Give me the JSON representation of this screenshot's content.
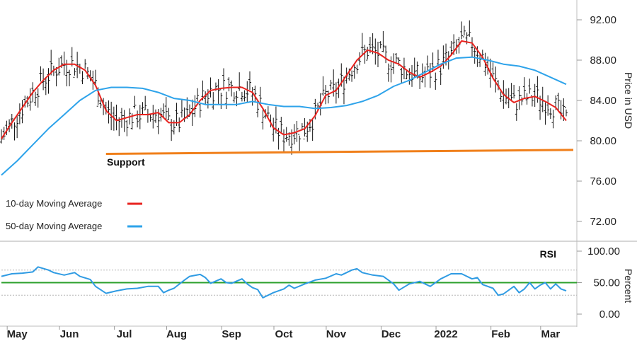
{
  "chart_data": [
    {
      "type": "candlestick",
      "panel": "price",
      "ylabel": "Price in USD",
      "ylim": [
        70.0,
        94.0
      ],
      "y_ticks": [
        "92.00",
        "88.00",
        "84.00",
        "80.00",
        "76.00",
        "72.00"
      ],
      "y_tick_values": [
        92,
        88,
        84,
        80,
        76,
        72
      ],
      "months": [
        "May",
        "Jun",
        "Jul",
        "Aug",
        "Sep",
        "Oct",
        "Nov",
        "Dec",
        "2022",
        "Feb",
        "Mar"
      ],
      "x_range": [
        0,
        216
      ],
      "month_starts": [
        6,
        26,
        47,
        67,
        88,
        108,
        128,
        149,
        170,
        191,
        210
      ],
      "support": {
        "label": "Support",
        "x": [
          40,
          216
        ],
        "y": [
          78.7,
          79.1
        ],
        "color": "#f07f1a"
      },
      "legend": [
        {
          "label": "10-day Moving Average",
          "color": "#e8231f"
        },
        {
          "label": "50-day Moving Average",
          "color": "#2ea3ea"
        }
      ],
      "series": [
        {
          "name": "10-day Moving Average",
          "color": "#e8231f",
          "points": [
            [
              0,
              80.2
            ],
            [
              4,
              81.8
            ],
            [
              8,
              83.3
            ],
            [
              12,
              84.8
            ],
            [
              16,
              86.0
            ],
            [
              20,
              87.0
            ],
            [
              24,
              87.6
            ],
            [
              28,
              87.6
            ],
            [
              32,
              87.0
            ],
            [
              36,
              85.5
            ],
            [
              40,
              83.0
            ],
            [
              44,
              82.0
            ],
            [
              48,
              82.3
            ],
            [
              52,
              82.6
            ],
            [
              56,
              82.6
            ],
            [
              60,
              82.8
            ],
            [
              64,
              81.8
            ],
            [
              68,
              81.8
            ],
            [
              72,
              82.6
            ],
            [
              76,
              84.0
            ],
            [
              80,
              85.0
            ],
            [
              84,
              85.2
            ],
            [
              88,
              85.3
            ],
            [
              92,
              85.3
            ],
            [
              96,
              84.8
            ],
            [
              100,
              83.2
            ],
            [
              104,
              81.3
            ],
            [
              108,
              80.6
            ],
            [
              112,
              80.8
            ],
            [
              116,
              81.2
            ],
            [
              120,
              82.5
            ],
            [
              124,
              84.5
            ],
            [
              128,
              85.0
            ],
            [
              132,
              86.5
            ],
            [
              136,
              88.0
            ],
            [
              140,
              89.0
            ],
            [
              144,
              88.7
            ],
            [
              148,
              88.0
            ],
            [
              152,
              87.6
            ],
            [
              156,
              86.8
            ],
            [
              160,
              86.3
            ],
            [
              164,
              86.8
            ],
            [
              168,
              87.4
            ],
            [
              172,
              88.5
            ],
            [
              176,
              89.9
            ],
            [
              180,
              89.7
            ],
            [
              184,
              88.3
            ],
            [
              188,
              86.2
            ],
            [
              192,
              84.6
            ],
            [
              196,
              83.8
            ],
            [
              200,
              84.2
            ],
            [
              204,
              84.4
            ],
            [
              208,
              83.9
            ],
            [
              212,
              83.3
            ],
            [
              216,
              82.0
            ]
          ]
        },
        {
          "name": "50-day Moving Average",
          "color": "#2ea3ea",
          "points": [
            [
              0,
              76.6
            ],
            [
              6,
              78.0
            ],
            [
              12,
              79.6
            ],
            [
              18,
              81.2
            ],
            [
              24,
              82.6
            ],
            [
              30,
              84.0
            ],
            [
              36,
              85.0
            ],
            [
              42,
              85.3
            ],
            [
              48,
              85.3
            ],
            [
              54,
              85.2
            ],
            [
              60,
              84.8
            ],
            [
              66,
              84.2
            ],
            [
              72,
              84.0
            ],
            [
              78,
              83.6
            ],
            [
              84,
              83.6
            ],
            [
              90,
              83.6
            ],
            [
              96,
              83.9
            ],
            [
              102,
              83.6
            ],
            [
              108,
              83.4
            ],
            [
              114,
              83.4
            ],
            [
              120,
              83.2
            ],
            [
              126,
              83.3
            ],
            [
              132,
              83.5
            ],
            [
              138,
              83.9
            ],
            [
              144,
              84.5
            ],
            [
              150,
              85.4
            ],
            [
              156,
              86.0
            ],
            [
              162,
              86.8
            ],
            [
              168,
              87.6
            ],
            [
              174,
              88.2
            ],
            [
              180,
              88.3
            ],
            [
              186,
              88.0
            ],
            [
              192,
              87.6
            ],
            [
              198,
              87.4
            ],
            [
              204,
              87.0
            ],
            [
              210,
              86.3
            ],
            [
              216,
              85.6
            ]
          ]
        }
      ]
    },
    {
      "type": "line",
      "panel": "rsi",
      "title": "RSI",
      "ylabel": "Percent",
      "ylim": [
        0,
        100
      ],
      "y_ticks": [
        "100.00",
        "50.00",
        "0.00"
      ],
      "y_tick_values": [
        100,
        50,
        0
      ],
      "overbought": 70,
      "oversold": 30,
      "midline": 50,
      "midline_color": "#2ca02c",
      "series": [
        {
          "name": "RSI",
          "color": "#2f9be3",
          "points": [
            [
              0,
              60
            ],
            [
              4,
              64
            ],
            [
              8,
              65
            ],
            [
              12,
              67
            ],
            [
              14,
              75
            ],
            [
              18,
              70
            ],
            [
              20,
              66
            ],
            [
              24,
              62
            ],
            [
              28,
              66
            ],
            [
              30,
              60
            ],
            [
              34,
              55
            ],
            [
              36,
              44
            ],
            [
              40,
              33
            ],
            [
              44,
              37
            ],
            [
              48,
              40
            ],
            [
              52,
              41
            ],
            [
              56,
              44
            ],
            [
              60,
              44
            ],
            [
              62,
              34
            ],
            [
              64,
              38
            ],
            [
              66,
              41
            ],
            [
              70,
              54
            ],
            [
              72,
              60
            ],
            [
              76,
              63
            ],
            [
              78,
              58
            ],
            [
              80,
              49
            ],
            [
              84,
              56
            ],
            [
              86,
              50
            ],
            [
              88,
              49
            ],
            [
              92,
              56
            ],
            [
              94,
              48
            ],
            [
              96,
              42
            ],
            [
              98,
              39
            ],
            [
              100,
              26
            ],
            [
              104,
              34
            ],
            [
              108,
              40
            ],
            [
              110,
              46
            ],
            [
              112,
              41
            ],
            [
              116,
              48
            ],
            [
              120,
              54
            ],
            [
              124,
              57
            ],
            [
              128,
              64
            ],
            [
              130,
              62
            ],
            [
              132,
              66
            ],
            [
              134,
              70
            ],
            [
              136,
              72
            ],
            [
              138,
              66
            ],
            [
              142,
              62
            ],
            [
              146,
              60
            ],
            [
              150,
              48
            ],
            [
              152,
              38
            ],
            [
              156,
              48
            ],
            [
              160,
              52
            ],
            [
              164,
              44
            ],
            [
              168,
              56
            ],
            [
              172,
              64
            ],
            [
              176,
              64
            ],
            [
              180,
              56
            ],
            [
              182,
              58
            ],
            [
              184,
              47
            ],
            [
              188,
              41
            ],
            [
              190,
              30
            ],
            [
              192,
              32
            ],
            [
              196,
              44
            ],
            [
              198,
              34
            ],
            [
              200,
              40
            ],
            [
              202,
              50
            ],
            [
              204,
              40
            ],
            [
              206,
              46
            ],
            [
              208,
              50
            ],
            [
              210,
              40
            ],
            [
              212,
              48
            ],
            [
              214,
              40
            ],
            [
              216,
              37
            ]
          ]
        }
      ]
    }
  ]
}
